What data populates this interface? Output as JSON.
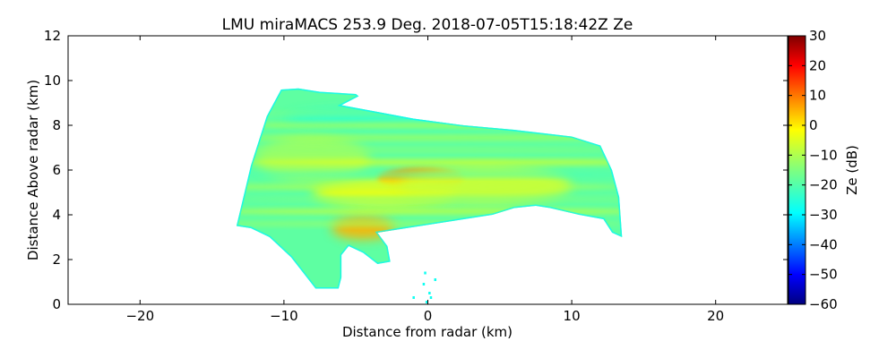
{
  "chart_data": {
    "type": "heatmap",
    "title": "LMU miraMACS 253.9 Deg. 2018-07-05T15:18:42Z  Ze",
    "xlabel": "Distance from radar (km)",
    "ylabel": "Distance Above radar  (km)",
    "xlim": [
      -25,
      25
    ],
    "ylim": [
      0,
      12
    ],
    "xticks": [
      -20,
      -10,
      0,
      10,
      20
    ],
    "yticks": [
      0,
      2,
      4,
      6,
      8,
      10,
      12
    ],
    "colorbar": {
      "label": "Ze (dB)",
      "range": [
        -60,
        30
      ],
      "ticks": [
        30,
        20,
        10,
        0,
        -10,
        -20,
        -30,
        -40,
        -50,
        -60
      ],
      "colormap": "jet"
    },
    "echo_region": {
      "description_units": "km",
      "outline": [
        [
          -13.3,
          3.5
        ],
        [
          -12.3,
          6.2
        ],
        [
          -11.2,
          8.4
        ],
        [
          -10.2,
          9.6
        ],
        [
          -9.0,
          9.65
        ],
        [
          -7.5,
          9.5
        ],
        [
          -5.0,
          9.4
        ],
        [
          -4.8,
          9.3
        ],
        [
          -6.0,
          8.9
        ],
        [
          -3.5,
          8.6
        ],
        [
          -1.0,
          8.3
        ],
        [
          2.5,
          8.0
        ],
        [
          6.0,
          7.8
        ],
        [
          10.0,
          7.5
        ],
        [
          12.0,
          7.1
        ],
        [
          12.8,
          6.0
        ],
        [
          13.3,
          4.8
        ],
        [
          13.5,
          3.0
        ],
        [
          12.8,
          3.2
        ],
        [
          12.2,
          3.8
        ],
        [
          10.5,
          4.0
        ],
        [
          8.5,
          4.3
        ],
        [
          7.5,
          4.4
        ],
        [
          6.0,
          4.3
        ],
        [
          4.5,
          4.0
        ],
        [
          2.5,
          3.8
        ],
        [
          -1.5,
          3.4
        ],
        [
          -3.5,
          3.2
        ],
        [
          -2.8,
          2.6
        ],
        [
          -2.6,
          1.9
        ],
        [
          -3.5,
          1.8
        ],
        [
          -4.5,
          2.3
        ],
        [
          -5.5,
          2.6
        ],
        [
          -6.0,
          2.2
        ],
        [
          -6.0,
          1.2
        ],
        [
          -6.2,
          0.7
        ],
        [
          -7.8,
          0.7
        ],
        [
          -9.5,
          2.1
        ],
        [
          -11.0,
          3.0
        ],
        [
          -12.3,
          3.4
        ]
      ],
      "features": [
        {
          "type": "core",
          "center": [
            -0.5,
            5.6
          ],
          "extent": [
            3.0,
            0.5
          ],
          "ze_db": 5
        },
        {
          "type": "band",
          "center": [
            -4.5,
            3.4
          ],
          "extent": [
            2.2,
            0.5
          ],
          "ze_db": 3
        },
        {
          "type": "band",
          "center": [
            -3.0,
            5.0
          ],
          "extent": [
            5.0,
            0.6
          ],
          "ze_db": -5
        },
        {
          "type": "band",
          "center": [
            4.0,
            5.3
          ],
          "extent": [
            6.0,
            0.8
          ],
          "ze_db": -8
        },
        {
          "type": "band",
          "center": [
            -8.0,
            6.5
          ],
          "extent": [
            4.0,
            1.0
          ],
          "ze_db": -12
        },
        {
          "type": "edge",
          "center": [
            -1.0,
            8.3
          ],
          "extent": [
            9.0,
            0.5
          ],
          "ze_db": -22
        }
      ],
      "speckles": [
        [
          -0.2,
          1.4
        ],
        [
          -0.3,
          0.9
        ],
        [
          0.1,
          0.5
        ],
        [
          0.2,
          0.3
        ],
        [
          -1.0,
          0.3
        ],
        [
          0.5,
          1.1
        ],
        [
          -0.1,
          0.1
        ]
      ]
    }
  }
}
